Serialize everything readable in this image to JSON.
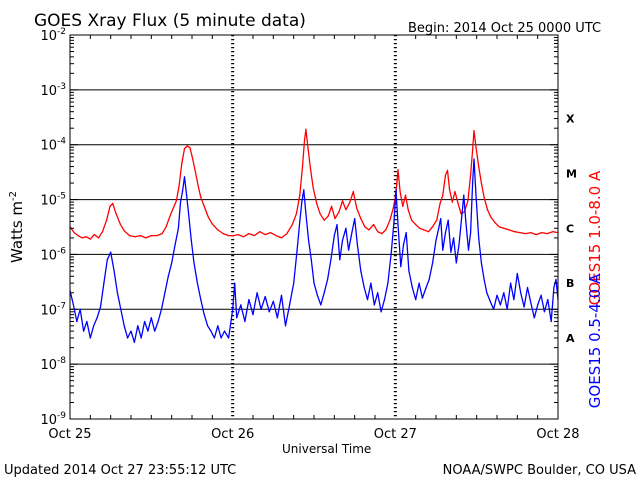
{
  "header": {
    "title": "GOES Xray Flux (5 minute data)",
    "begin": "Begin:  2014 Oct 25 0000 UTC"
  },
  "footer": {
    "updated": "Updated 2014 Oct 27 23:55:12 UTC",
    "credit": "NOAA/SWPC Boulder, CO USA"
  },
  "colors": {
    "long_channel": "#ff0000",
    "short_channel": "#0000ff",
    "gridline": "#000000"
  },
  "chart_data": {
    "type": "line",
    "title": "GOES Xray Flux (5 minute data)",
    "xlabel": "Universal Time",
    "ylabel": "Watts m",
    "ylabel_superscript": "-2",
    "yscale": "log",
    "ylim": [
      1e-09,
      0.01
    ],
    "yticks": [
      {
        "base": "10",
        "exp": "-2",
        "value": 0.01
      },
      {
        "base": "10",
        "exp": "-3",
        "value": 0.001
      },
      {
        "base": "10",
        "exp": "-4",
        "value": 0.0001
      },
      {
        "base": "10",
        "exp": "-5",
        "value": 1e-05
      },
      {
        "base": "10",
        "exp": "-6",
        "value": 1e-06
      },
      {
        "base": "10",
        "exp": "-7",
        "value": 1e-07
      },
      {
        "base": "10",
        "exp": "-8",
        "value": 1e-08
      },
      {
        "base": "10",
        "exp": "-9",
        "value": 1e-09
      }
    ],
    "xlim": [
      0,
      72
    ],
    "xunit": "hours since 2014 Oct 25 0000 UTC",
    "xticks": [
      {
        "label": "Oct 25",
        "value": 0
      },
      {
        "label": "Oct 26",
        "value": 24
      },
      {
        "label": "Oct 27",
        "value": 48
      },
      {
        "label": "Oct 28",
        "value": 72
      }
    ],
    "grid": "horizontal lines at each decade; dashed vertical lines at day boundaries",
    "flare_classes": [
      {
        "label": "A",
        "value": 3e-08
      },
      {
        "label": "B",
        "value": 3e-07
      },
      {
        "label": "C",
        "value": 3e-06
      },
      {
        "label": "M",
        "value": 3e-05
      },
      {
        "label": "X",
        "value": 0.0003
      }
    ],
    "series": [
      {
        "name": "GOES15 1.0-8.0 A",
        "color": "#ff0000",
        "points": [
          [
            0,
            3.2e-06
          ],
          [
            0.6,
            2.5e-06
          ],
          [
            1.2,
            2.2e-06
          ],
          [
            1.8,
            2e-06
          ],
          [
            2.4,
            2.1e-06
          ],
          [
            3,
            1.9e-06
          ],
          [
            3.6,
            2.3e-06
          ],
          [
            4.2,
            2e-06
          ],
          [
            4.8,
            2.6e-06
          ],
          [
            5.4,
            4.2e-06
          ],
          [
            5.9,
            7.5e-06
          ],
          [
            6.3,
            8.5e-06
          ],
          [
            6.8,
            5.5e-06
          ],
          [
            7.4,
            3.6e-06
          ],
          [
            8,
            2.7e-06
          ],
          [
            8.8,
            2.2e-06
          ],
          [
            9.6,
            2.1e-06
          ],
          [
            10.4,
            2.2e-06
          ],
          [
            11.2,
            2e-06
          ],
          [
            12,
            2.2e-06
          ],
          [
            12.8,
            2.2e-06
          ],
          [
            13.6,
            2.4e-06
          ],
          [
            14.2,
            3.2e-06
          ],
          [
            14.7,
            4.8e-06
          ],
          [
            15.2,
            6.8e-06
          ],
          [
            15.7,
            9.5e-06
          ],
          [
            16.1,
            1.8e-05
          ],
          [
            16.5,
            4.5e-05
          ],
          [
            16.9,
            8.5e-05
          ],
          [
            17.3,
            9.5e-05
          ],
          [
            17.7,
            8.8e-05
          ],
          [
            18.1,
            5.5e-05
          ],
          [
            18.5,
            3.2e-05
          ],
          [
            18.9,
            1.8e-05
          ],
          [
            19.3,
            1.1e-05
          ],
          [
            19.8,
            7.5e-06
          ],
          [
            20.4,
            4.8e-06
          ],
          [
            21,
            3.6e-06
          ],
          [
            21.8,
            2.8e-06
          ],
          [
            22.6,
            2.4e-06
          ],
          [
            23.4,
            2.2e-06
          ],
          [
            24.1,
            2.2e-06
          ],
          [
            24.8,
            2.3e-06
          ],
          [
            25.6,
            2.1e-06
          ],
          [
            26.4,
            2.4e-06
          ],
          [
            27.2,
            2.2e-06
          ],
          [
            28,
            2.6e-06
          ],
          [
            28.8,
            2.3e-06
          ],
          [
            29.6,
            2.5e-06
          ],
          [
            30.4,
            2.2e-06
          ],
          [
            31.2,
            2e-06
          ],
          [
            32,
            2.4e-06
          ],
          [
            32.8,
            3.5e-06
          ],
          [
            33.4,
            5.5e-06
          ],
          [
            33.9,
            1.2e-05
          ],
          [
            34.3,
            4e-05
          ],
          [
            34.6,
            0.00012
          ],
          [
            34.8,
            0.00019
          ],
          [
            35.1,
            9e-05
          ],
          [
            35.5,
            3.5e-05
          ],
          [
            35.9,
            1.6e-05
          ],
          [
            36.4,
            8.5e-06
          ],
          [
            36.9,
            5.5e-06
          ],
          [
            37.5,
            4.2e-06
          ],
          [
            38.1,
            5e-06
          ],
          [
            38.6,
            7.5e-06
          ],
          [
            39.1,
            4.5e-06
          ],
          [
            39.7,
            6e-06
          ],
          [
            40.2,
            9.5e-06
          ],
          [
            40.7,
            6.5e-06
          ],
          [
            41.3,
            9e-06
          ],
          [
            41.8,
            1.4e-05
          ],
          [
            42.3,
            7e-06
          ],
          [
            42.9,
            4.5e-06
          ],
          [
            43.5,
            3.2e-06
          ],
          [
            44.1,
            2.8e-06
          ],
          [
            44.8,
            3.5e-06
          ],
          [
            45.4,
            2.6e-06
          ],
          [
            46,
            2.4e-06
          ],
          [
            46.6,
            2.8e-06
          ],
          [
            47.2,
            4.2e-06
          ],
          [
            47.7,
            7e-06
          ],
          [
            48.1,
            1.3e-05
          ],
          [
            48.4,
            3.5e-05
          ],
          [
            48.7,
            1.4e-05
          ],
          [
            49.1,
            7.5e-06
          ],
          [
            49.5,
            1.2e-05
          ],
          [
            49.9,
            6.5e-06
          ],
          [
            50.4,
            4.2e-06
          ],
          [
            51,
            3.5e-06
          ],
          [
            51.6,
            3e-06
          ],
          [
            52.2,
            2.8e-06
          ],
          [
            52.9,
            2.6e-06
          ],
          [
            53.5,
            3.2e-06
          ],
          [
            54.1,
            4.2e-06
          ],
          [
            54.6,
            8.5e-06
          ],
          [
            55,
            1.2e-05
          ],
          [
            55.4,
            2.8e-05
          ],
          [
            55.7,
            3.4e-05
          ],
          [
            56,
            1.5e-05
          ],
          [
            56.4,
            9e-06
          ],
          [
            56.8,
            1.4e-05
          ],
          [
            57.2,
            9e-06
          ],
          [
            57.7,
            5.5e-06
          ],
          [
            58.2,
            6e-06
          ],
          [
            58.7,
            9.5e-06
          ],
          [
            59.1,
            2.8e-05
          ],
          [
            59.4,
            8e-05
          ],
          [
            59.6,
            0.00018
          ],
          [
            59.9,
            9e-05
          ],
          [
            60.3,
            4e-05
          ],
          [
            60.7,
            2e-05
          ],
          [
            61.1,
            1.1e-05
          ],
          [
            61.6,
            6.5e-06
          ],
          [
            62.1,
            4.8e-06
          ],
          [
            62.7,
            3.8e-06
          ],
          [
            63.3,
            3.2e-06
          ],
          [
            64,
            3e-06
          ],
          [
            64.8,
            2.8e-06
          ],
          [
            65.6,
            2.6e-06
          ],
          [
            66.4,
            2.5e-06
          ],
          [
            67.2,
            2.4e-06
          ],
          [
            68,
            2.5e-06
          ],
          [
            68.8,
            2.3e-06
          ],
          [
            69.6,
            2.5e-06
          ],
          [
            70.4,
            2.4e-06
          ],
          [
            71.2,
            2.6e-06
          ],
          [
            72,
            2.5e-06
          ]
        ]
      },
      {
        "name": "GOES15 0.5-4.0 A",
        "color": "#0000ff",
        "points": [
          [
            0,
            2.2e-07
          ],
          [
            0.5,
            1.2e-07
          ],
          [
            1,
            6e-08
          ],
          [
            1.5,
            1e-07
          ],
          [
            2,
            4e-08
          ],
          [
            2.5,
            6e-08
          ],
          [
            3,
            3e-08
          ],
          [
            3.5,
            5e-08
          ],
          [
            4,
            7e-08
          ],
          [
            4.5,
            1.1e-07
          ],
          [
            5,
            3e-07
          ],
          [
            5.5,
            8e-07
          ],
          [
            6,
            1.1e-06
          ],
          [
            6.5,
            5e-07
          ],
          [
            7,
            2e-07
          ],
          [
            7.5,
            1e-07
          ],
          [
            8,
            5e-08
          ],
          [
            8.5,
            3e-08
          ],
          [
            9,
            4e-08
          ],
          [
            9.5,
            2.5e-08
          ],
          [
            10,
            5e-08
          ],
          [
            10.5,
            3e-08
          ],
          [
            11,
            6e-08
          ],
          [
            11.5,
            4e-08
          ],
          [
            12,
            7e-08
          ],
          [
            12.5,
            4e-08
          ],
          [
            13,
            6e-08
          ],
          [
            13.5,
            1e-07
          ],
          [
            14,
            2e-07
          ],
          [
            14.5,
            4e-07
          ],
          [
            15,
            7e-07
          ],
          [
            15.5,
            1.5e-06
          ],
          [
            16,
            3e-06
          ],
          [
            16.3,
            9e-06
          ],
          [
            16.6,
            1.4e-05
          ],
          [
            16.9,
            2.6e-05
          ],
          [
            17.2,
            1.2e-05
          ],
          [
            17.5,
            5.5e-06
          ],
          [
            17.9,
            1.8e-06
          ],
          [
            18.3,
            7e-07
          ],
          [
            18.8,
            3e-07
          ],
          [
            19.3,
            1.5e-07
          ],
          [
            19.8,
            8e-08
          ],
          [
            20.3,
            5e-08
          ],
          [
            20.8,
            4e-08
          ],
          [
            21.3,
            3e-08
          ],
          [
            21.8,
            5e-08
          ],
          [
            22.3,
            3e-08
          ],
          [
            22.8,
            4e-08
          ],
          [
            23.4,
            3e-08
          ],
          [
            24,
            1e-07
          ],
          [
            24.3,
            3e-07
          ],
          [
            24.6,
            7e-08
          ],
          [
            25.2,
            1.2e-07
          ],
          [
            25.8,
            6e-08
          ],
          [
            26.4,
            1.5e-07
          ],
          [
            27,
            8e-08
          ],
          [
            27.6,
            2e-07
          ],
          [
            28.2,
            1e-07
          ],
          [
            28.8,
            1.7e-07
          ],
          [
            29.4,
            9e-08
          ],
          [
            30,
            1.4e-07
          ],
          [
            30.6,
            7e-08
          ],
          [
            31.2,
            1.8e-07
          ],
          [
            31.8,
            5e-08
          ],
          [
            32.4,
            1.2e-07
          ],
          [
            33,
            3e-07
          ],
          [
            33.5,
            1.2e-06
          ],
          [
            33.9,
            4e-06
          ],
          [
            34.2,
            9e-06
          ],
          [
            34.5,
            1.5e-05
          ],
          [
            34.8,
            5.5e-06
          ],
          [
            35.2,
            1.8e-06
          ],
          [
            35.6,
            8e-07
          ],
          [
            36,
            3e-07
          ],
          [
            36.5,
            1.8e-07
          ],
          [
            37,
            1.2e-07
          ],
          [
            37.5,
            2e-07
          ],
          [
            38,
            3.5e-07
          ],
          [
            38.5,
            8e-07
          ],
          [
            39,
            2.2e-06
          ],
          [
            39.4,
            3.5e-06
          ],
          [
            39.8,
            8e-07
          ],
          [
            40.2,
            1.8e-06
          ],
          [
            40.7,
            3e-06
          ],
          [
            41.1,
            1.2e-06
          ],
          [
            41.5,
            2.2e-06
          ],
          [
            42,
            4.5e-06
          ],
          [
            42.4,
            1.5e-06
          ],
          [
            42.9,
            5e-07
          ],
          [
            43.4,
            2.5e-07
          ],
          [
            43.9,
            1.5e-07
          ],
          [
            44.4,
            3e-07
          ],
          [
            44.9,
            1.2e-07
          ],
          [
            45.4,
            2e-07
          ],
          [
            45.9,
            9e-08
          ],
          [
            46.4,
            1.5e-07
          ],
          [
            46.9,
            3e-07
          ],
          [
            47.4,
            1.1e-06
          ],
          [
            47.8,
            4e-06
          ],
          [
            48.1,
            1.5e-05
          ],
          [
            48.4,
            3.5e-06
          ],
          [
            48.8,
            6e-07
          ],
          [
            49.2,
            1.5e-06
          ],
          [
            49.6,
            2.5e-06
          ],
          [
            50,
            5e-07
          ],
          [
            50.5,
            2.5e-07
          ],
          [
            51,
            1.5e-07
          ],
          [
            51.5,
            3e-07
          ],
          [
            52,
            1.6e-07
          ],
          [
            52.5,
            2.4e-07
          ],
          [
            53,
            3.5e-07
          ],
          [
            53.5,
            7e-07
          ],
          [
            54,
            1.8e-06
          ],
          [
            54.4,
            3e-06
          ],
          [
            54.7,
            4.5e-06
          ],
          [
            55,
            1.2e-06
          ],
          [
            55.4,
            2.5e-06
          ],
          [
            55.8,
            4.2e-06
          ],
          [
            56.2,
            1.1e-06
          ],
          [
            56.6,
            2e-06
          ],
          [
            57,
            7e-07
          ],
          [
            57.4,
            1.5e-06
          ],
          [
            57.8,
            5e-06
          ],
          [
            58.1,
            1.2e-05
          ],
          [
            58.4,
            4e-06
          ],
          [
            58.8,
            1.2e-06
          ],
          [
            59.1,
            2.5e-06
          ],
          [
            59.4,
            2e-05
          ],
          [
            59.6,
            5.5e-05
          ],
          [
            59.9,
            1.2e-05
          ],
          [
            60.3,
            2e-06
          ],
          [
            60.7,
            7e-07
          ],
          [
            61.1,
            3.5e-07
          ],
          [
            61.5,
            2e-07
          ],
          [
            62,
            1.4e-07
          ],
          [
            62.5,
            1e-07
          ],
          [
            63,
            1.8e-07
          ],
          [
            63.5,
            1.2e-07
          ],
          [
            64,
            2e-07
          ],
          [
            64.5,
            1e-07
          ],
          [
            65,
            3e-07
          ],
          [
            65.5,
            1.5e-07
          ],
          [
            66,
            4.5e-07
          ],
          [
            66.5,
            2e-07
          ],
          [
            67,
            1.1e-07
          ],
          [
            67.5,
            2.5e-07
          ],
          [
            68,
            1.3e-07
          ],
          [
            68.5,
            7e-08
          ],
          [
            69,
            1.2e-07
          ],
          [
            69.5,
            1.8e-07
          ],
          [
            70,
            9e-08
          ],
          [
            70.5,
            1.5e-07
          ],
          [
            71,
            6e-08
          ],
          [
            71.4,
            2.5e-07
          ],
          [
            71.7,
            3.5e-07
          ],
          [
            72,
            1.5e-07
          ]
        ]
      }
    ]
  }
}
